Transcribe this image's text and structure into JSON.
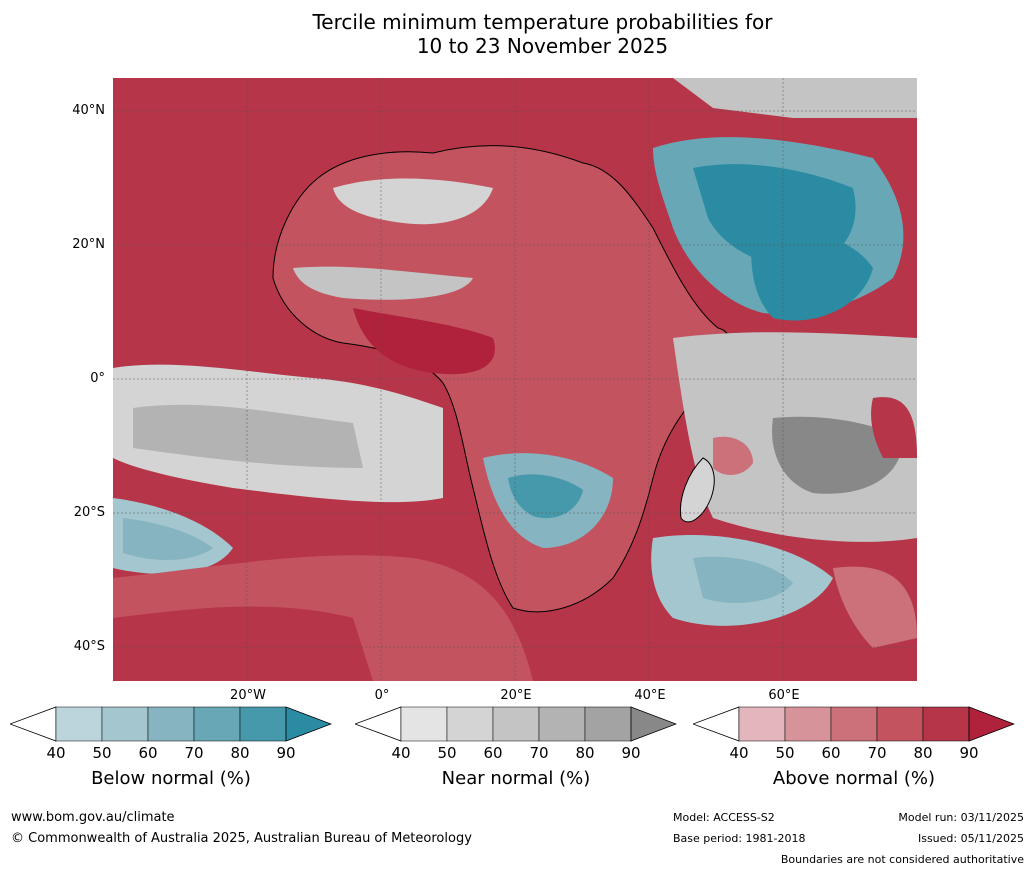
{
  "title_line1": "Tercile minimum temperature probabilities for",
  "title_line2": "10 to 23 November 2025",
  "map": {
    "lat_labels": [
      "40°N",
      "20°N",
      "0°",
      "20°S",
      "40°S"
    ],
    "lon_labels": [
      "20°W",
      "0°",
      "20°E",
      "40°E",
      "60°E"
    ]
  },
  "colors": {
    "below": [
      "#bcd5dc",
      "#a4c6ce",
      "#86b4c0",
      "#68a8b6",
      "#4699ab",
      "#2b8ba3"
    ],
    "near": [
      "#e4e4e4",
      "#d4d4d4",
      "#c4c4c4",
      "#b3b3b3",
      "#a3a3a3",
      "#888888"
    ],
    "above": [
      "#e2b6bc",
      "#d69399",
      "#cc7079",
      "#c3545f",
      "#b63548",
      "#b0213b"
    ]
  },
  "legends": {
    "below": {
      "label": "Below normal (%)",
      "ticks": [
        "40",
        "50",
        "60",
        "70",
        "80",
        "90"
      ]
    },
    "near": {
      "label": "Near normal (%)",
      "ticks": [
        "40",
        "50",
        "60",
        "70",
        "80",
        "90"
      ]
    },
    "above": {
      "label": "Above normal (%)",
      "ticks": [
        "40",
        "50",
        "60",
        "70",
        "80",
        "90"
      ]
    }
  },
  "footer": {
    "url": "www.bom.gov.au/climate",
    "copyright": "© Commonwealth of Australia 2025, Australian Bureau of Meteorology",
    "model": "Model: ACCESS-S2",
    "base_period": "Base period: 1981-2018",
    "model_run": "Model run: 03/11/2025",
    "issued": "Issued: 05/11/2025",
    "disclaimer": "Boundaries are not considered authoritative"
  }
}
